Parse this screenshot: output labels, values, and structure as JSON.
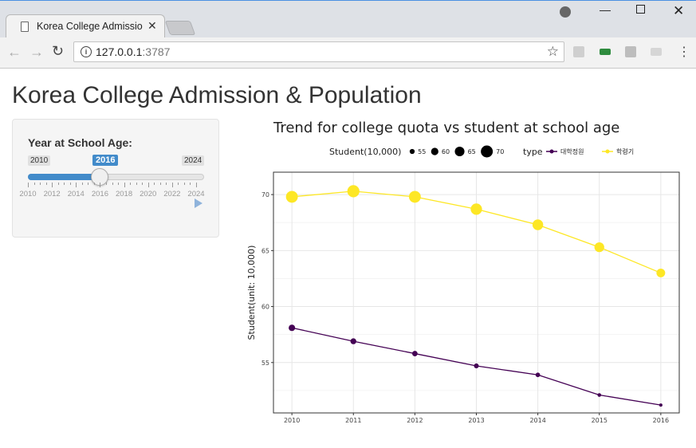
{
  "browser": {
    "tab_title": "Korea College Admissio",
    "url_host": "127.0.0.1",
    "url_port": ":3787"
  },
  "page": {
    "title": "Korea College Admission & Population"
  },
  "slider": {
    "label": "Year at School Age:",
    "min_label": "2010",
    "max_label": "2024",
    "value_label": "2016",
    "value": 2016,
    "min": 2010,
    "max": 2024,
    "tick_labels": [
      "2010",
      "2012",
      "2014",
      "2016",
      "2018",
      "2020",
      "2022",
      "2024"
    ]
  },
  "chart_data": {
    "type": "line",
    "title": "Trend for college quota vs student at school age",
    "ylabel": "Student(unit: 10,000)",
    "xlabel": "",
    "categories": [
      2010,
      2011,
      2012,
      2013,
      2014,
      2015,
      2016
    ],
    "ylim": [
      50.5,
      72
    ],
    "yticks": [
      55,
      60,
      65,
      70
    ],
    "grid": true,
    "legend": {
      "size_title": "Student(10,000)",
      "size_values": [
        55,
        60,
        65,
        70
      ],
      "type_title": "type",
      "placement": "top"
    },
    "series": [
      {
        "name": "대학정원",
        "color": "#440154",
        "values": [
          58.1,
          56.9,
          55.8,
          54.7,
          53.9,
          52.1,
          51.2
        ]
      },
      {
        "name": "학령기",
        "color": "#fde725",
        "values": [
          69.8,
          70.3,
          69.8,
          68.7,
          67.3,
          65.3,
          63.0
        ]
      }
    ]
  }
}
